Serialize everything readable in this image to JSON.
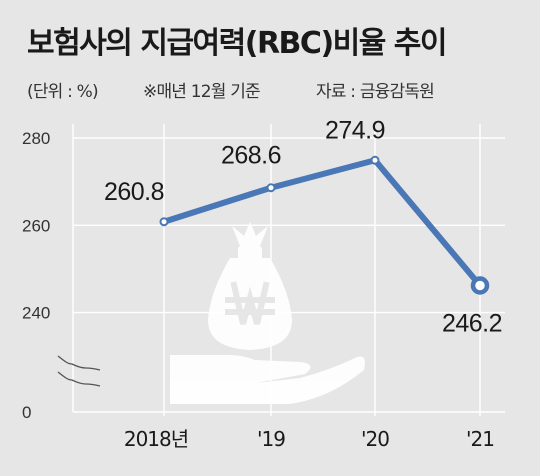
{
  "title": "보험사의 지급여력(RBC)비율 추이",
  "unit_note": "(단위 : %)",
  "basis_note": "※매년 12월 기준",
  "source_note": "자료 : 금융감독원",
  "chart_data": {
    "type": "line",
    "categories": [
      "2018년",
      "'19",
      "'20",
      "'21"
    ],
    "series": [
      {
        "values": [
          260.8,
          268.6,
          274.9,
          246.2
        ]
      }
    ],
    "data_labels": [
      "260.8",
      "268.6",
      "274.9",
      "246.2"
    ],
    "y_ticks": [
      0,
      240,
      260,
      280
    ],
    "ylim": [
      236,
      280
    ],
    "axis_break": true,
    "grid": true,
    "line_color": "#4a77b5",
    "marker_fill": "#ffffff",
    "grid_color": "#ffffff",
    "background_color": "#e6e6e6",
    "icon": "money-bag-on-hand-icon"
  }
}
